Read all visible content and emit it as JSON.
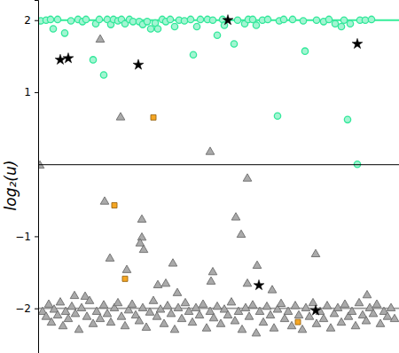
{
  "chart_data": {
    "type": "scatter",
    "y_label": "log₂(u)",
    "xlim": [
      0,
      407
    ],
    "xticks": [],
    "ylim": [
      -2.62,
      2.28
    ],
    "yticks": [
      {
        "value": -2,
        "label": "−2"
      },
      {
        "value": -1,
        "label": "−1"
      },
      1,
      2
    ],
    "tick_labels": "y",
    "series": [
      {
        "type": "line",
        "color": "#33ee99",
        "line_style": "solid",
        "x": [
          0,
          407
        ],
        "values": [
          2,
          2
        ]
      },
      {
        "type": "line",
        "color": "#999999",
        "line_style": "solid",
        "x": [
          0,
          407
        ],
        "values": [
          -2,
          -2
        ]
      },
      {
        "type": "scatter",
        "color": "#33e89b",
        "marker": "circle",
        "x": [
          3,
          9,
          14,
          17,
          22,
          30,
          37,
          45,
          50,
          54,
          62,
          65,
          69,
          74,
          78,
          82,
          85,
          90,
          94,
          98,
          103,
          107,
          114,
          118,
          123,
          127,
          132,
          135,
          140,
          144,
          149,
          154,
          159,
          165,
          172,
          175,
          179,
          183,
          191,
          197,
          202,
          208,
          210,
          221,
          225,
          233,
          237,
          242,
          246,
          253,
          259,
          270,
          272,
          277,
          287,
          299,
          301,
          314,
          322,
          328,
          335,
          342,
          345,
          349,
          352,
          360,
          363,
          369,
          376
        ],
        "values": [
          1.99,
          2.0,
          2.01,
          1.88,
          2.01,
          1.82,
          1.99,
          2.01,
          1.98,
          2.01,
          1.45,
          1.95,
          2.01,
          1.24,
          2.01,
          1.94,
          2.01,
          1.99,
          2.01,
          1.95,
          2.01,
          1.98,
          1.98,
          1.94,
          1.98,
          1.88,
          1.96,
          1.88,
          2.01,
          1.98,
          2.01,
          1.91,
          2.0,
          1.99,
          2.01,
          1.52,
          1.91,
          2.01,
          2.01,
          2.0,
          1.79,
          2.01,
          1.93,
          1.67,
          2.0,
          1.95,
          2.01,
          2.01,
          1.93,
          2.0,
          2.01,
          0.67,
          1.99,
          2.01,
          2.01,
          1.99,
          1.57,
          2.0,
          1.98,
          2.01,
          1.95,
          1.91,
          2.0,
          0.62,
          1.95,
          0.0,
          2.0,
          2.0,
          2.01
        ]
      },
      {
        "type": "scatter",
        "color": "#aaaaaa",
        "marker": "triangle",
        "x": [
          2,
          70,
          93,
          194,
          75,
          236,
          223,
          229,
          81,
          117,
          117,
          115,
          119,
          100,
          197,
          247,
          152,
          313,
          135,
          195,
          41,
          53,
          236,
          144,
          264,
          157,
          371,
          5,
          9,
          12,
          15,
          18,
          22,
          25,
          28,
          31,
          34,
          38,
          42,
          46,
          49,
          55,
          58,
          62,
          66,
          70,
          74,
          78,
          82,
          86,
          90,
          94,
          98,
          102,
          106,
          110,
          114,
          118,
          122,
          126,
          130,
          134,
          138,
          142,
          146,
          150,
          154,
          158,
          162,
          166,
          170,
          174,
          178,
          182,
          186,
          190,
          194,
          198,
          202,
          206,
          210,
          214,
          218,
          222,
          226,
          230,
          234,
          238,
          242,
          246,
          250,
          254,
          258,
          262,
          266,
          270,
          274,
          278,
          282,
          286,
          290,
          294,
          298,
          302,
          306,
          310,
          314,
          318,
          322,
          326,
          330,
          334,
          338,
          342,
          346,
          350,
          354,
          358,
          362,
          366,
          370,
          374,
          378,
          382,
          386,
          390,
          394,
          398,
          402
        ],
        "values": [
          -0.02,
          1.73,
          0.65,
          0.17,
          -0.52,
          -0.2,
          -0.74,
          -0.98,
          -1.31,
          -0.77,
          -1.02,
          -1.1,
          -1.19,
          -1.47,
          -1.5,
          -1.41,
          -1.38,
          -1.25,
          -1.68,
          -1.63,
          -1.83,
          -1.84,
          -1.66,
          -1.66,
          -1.75,
          -1.79,
          -1.82,
          -2.05,
          -2.12,
          -1.95,
          -2.2,
          -2.02,
          -2.1,
          -1.92,
          -2.25,
          -2.05,
          -2.15,
          -1.98,
          -2.08,
          -2.3,
          -2.0,
          -2.12,
          -1.9,
          -2.22,
          -2.05,
          -2.15,
          -1.96,
          -2.08,
          -2.2,
          -2.0,
          -1.93,
          -2.12,
          -2.25,
          -2.03,
          -1.95,
          -2.1,
          -2.18,
          -2.0,
          -2.27,
          -2.06,
          -1.9,
          -2.12,
          -2.02,
          -2.22,
          -1.97,
          -2.08,
          -2.3,
          -2.0,
          -2.15,
          -1.93,
          -2.05,
          -2.2,
          -2.0,
          -2.1,
          -1.95,
          -2.28,
          -2.05,
          -2.14,
          -1.98,
          -2.22,
          -2.02,
          -2.1,
          -1.92,
          -2.18,
          -2.05,
          -2.3,
          -2.0,
          -2.12,
          -1.96,
          -2.35,
          -2.05,
          -2.2,
          -1.98,
          -2.1,
          -2.28,
          -2.02,
          -1.94,
          -2.15,
          -2.05,
          -2.25,
          -1.97,
          -2.1,
          -2.3,
          -2.0,
          -2.12,
          -1.93,
          -2.22,
          -2.05,
          -2.15,
          -1.97,
          -2.28,
          -2.08,
          -2.0,
          -2.2,
          -1.95,
          -2.12,
          -2.05,
          -2.25,
          -1.93,
          -2.1,
          -2.18,
          -2.0,
          -2.08,
          -1.95,
          -2.22,
          -2.05,
          -2.12,
          -2.0,
          -2.15
        ]
      },
      {
        "type": "scatter",
        "color": "#f5a623",
        "marker": "square",
        "x": [
          130,
          86,
          98,
          293
        ],
        "values": [
          0.65,
          -0.57,
          -1.59,
          -2.19
        ]
      },
      {
        "type": "scatter",
        "color": "#000000",
        "marker": "star",
        "x": [
          25,
          34,
          113,
          214,
          360,
          249,
          313
        ],
        "values": [
          1.45,
          1.47,
          1.38,
          2.0,
          1.67,
          -1.68,
          -2.03
        ]
      }
    ]
  }
}
